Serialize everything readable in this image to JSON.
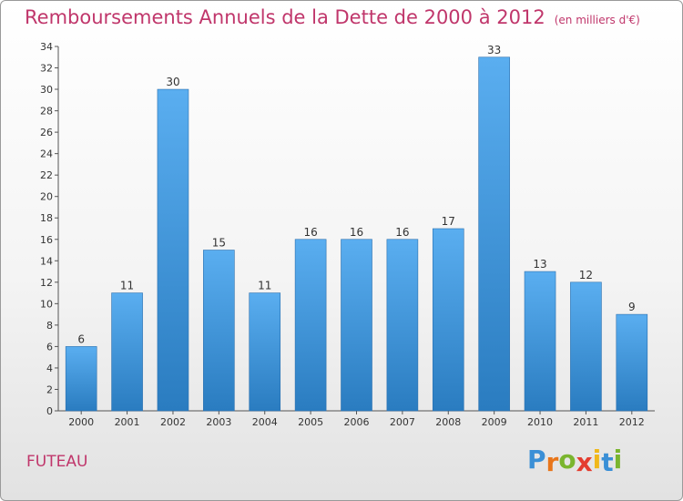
{
  "header": {
    "title": "Remboursements Annuels de la Dette de 2000 à 2012",
    "unit": "(en milliers d'€)"
  },
  "footer": {
    "commune": "FUTEAU",
    "logo_letters": [
      "P",
      "r",
      "o",
      "x",
      "i",
      "t",
      "i"
    ],
    "logo_colors": [
      "#3a8fd6",
      "#e8751a",
      "#7ab52e",
      "#e43d2f",
      "#f0b81a",
      "#3a8fd6",
      "#7ab52e"
    ]
  },
  "chart_data": {
    "type": "bar",
    "title": "Remboursements Annuels de la Dette de 2000 à 2012",
    "xlabel": "",
    "ylabel": "",
    "categories": [
      "2000",
      "2001",
      "2002",
      "2003",
      "2004",
      "2005",
      "2006",
      "2007",
      "2008",
      "2009",
      "2010",
      "2011",
      "2012"
    ],
    "values": [
      6,
      11,
      30,
      15,
      11,
      16,
      16,
      16,
      17,
      33,
      13,
      12,
      9
    ],
    "ylim": [
      0,
      34
    ],
    "yticks": [
      0,
      2,
      4,
      6,
      8,
      10,
      12,
      14,
      16,
      18,
      20,
      22,
      24,
      26,
      28,
      30,
      32,
      34
    ],
    "grid": false,
    "bar_color": "#4a9fe0",
    "bar_color_dark": "#2a7cc0"
  }
}
